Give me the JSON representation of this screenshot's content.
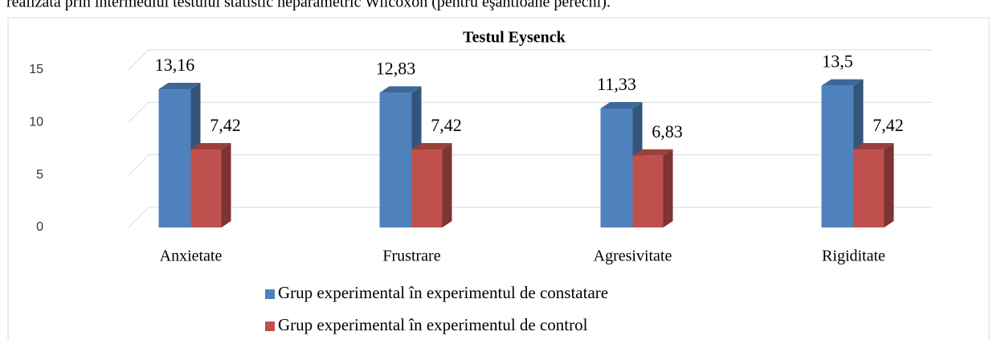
{
  "intro": "realizată prin intermediul testului statistic neparametric Wilcoxon (pentru eşantioane perechi).",
  "chart_data": {
    "type": "bar3d",
    "title": "Testul Eysenck",
    "categories": [
      "Anxietate",
      "Frustrare",
      "Agresivitate",
      "Rigiditate"
    ],
    "series": [
      {
        "name": "Grup experimental în experimentul de constatare",
        "color": "#4f81bd",
        "values": [
          13.16,
          12.83,
          11.33,
          13.5
        ],
        "value_labels": [
          "13,16",
          "12,83",
          "11,33",
          "13,5"
        ]
      },
      {
        "name": "Grup experimental în experimentul de control",
        "color": "#c0504d",
        "values": [
          7.42,
          7.42,
          6.83,
          7.42
        ],
        "value_labels": [
          "7,42",
          "7,42",
          "6,83",
          "7,42"
        ]
      }
    ],
    "ylim": [
      0,
      15
    ],
    "yticks": [
      0,
      5,
      10,
      15
    ],
    "grid": true,
    "legend": "bottom"
  }
}
